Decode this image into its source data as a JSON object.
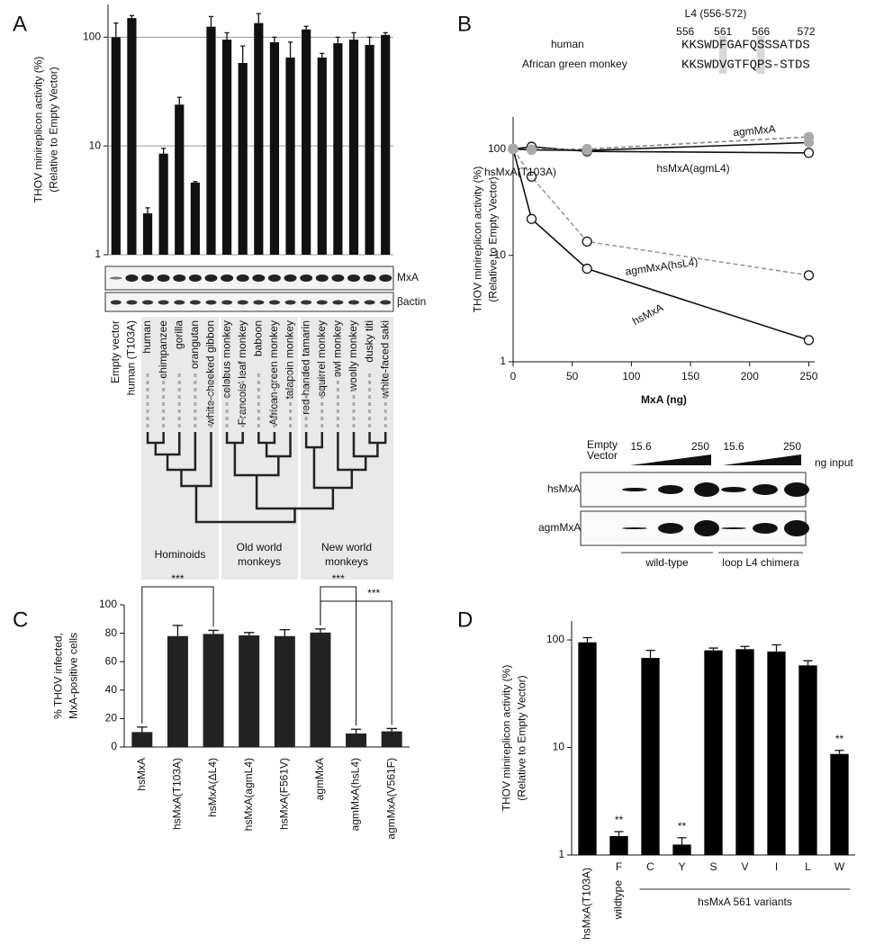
{
  "panel_labels": [
    "A",
    "B",
    "C",
    "D"
  ],
  "chart_data": [
    {
      "type": "bar",
      "ylabel": [
        "THOV minireplicon activity (%)",
        "(Relative to Empty Vector)"
      ],
      "categories": [
        "Empty vector",
        "human (T103A)",
        "human",
        "chimpanzee",
        "gorilla",
        "orangutan",
        "white-cheeked gibbon",
        "colobus monkey",
        "Francois' leaf monkey",
        "baboon",
        "African green monkey",
        "talapoin monkey",
        "red-handed tamarin",
        "squirrel monkey",
        "owl monkey",
        "woolly monkey",
        "dusky titi",
        "white-faced saki"
      ],
      "values": [
        100,
        150,
        2.4,
        8.5,
        24,
        4.6,
        125,
        95,
        58,
        135,
        90,
        65,
        118,
        65,
        88,
        95,
        85,
        105
      ],
      "errors": [
        35,
        8,
        0.3,
        1,
        4,
        0.1,
        30,
        15,
        25,
        30,
        10,
        25,
        8,
        6,
        12,
        15,
        15,
        5
      ],
      "color": "#111111",
      "log": true,
      "grid": true,
      "ylim": [
        1,
        200
      ],
      "yticks": [
        1,
        10,
        100
      ]
    },
    {
      "type": "line",
      "ylabel": [
        "THOV minireplicon activity (%)",
        "(Relative to Empty Vector)"
      ],
      "xlabel": "MxA (ng)",
      "x": [
        0,
        15.6,
        62.5,
        250
      ],
      "xlim": [
        0,
        255
      ],
      "xticks": [
        0,
        50,
        100,
        150,
        200,
        250
      ],
      "log": true,
      "ylim": [
        1,
        200
      ],
      "yticks": [
        1,
        10,
        100
      ],
      "series": [
        {
          "name": "hsMxA",
          "color": "#111111",
          "dash": false,
          "marker_color": "#ffffff",
          "values": [
            100,
            22,
            7.5,
            1.6
          ]
        },
        {
          "name": "agmMxA(hsL4)",
          "color": "#999999",
          "dash": true,
          "marker_color": "#ffffff",
          "values": [
            100,
            55,
            13.5,
            6.5
          ]
        },
        {
          "name": "hsMxA(T103A)",
          "color": "#111111",
          "dash": false,
          "marker_color": "#ffffff",
          "values": [
            100,
            105,
            95,
            92
          ]
        },
        {
          "name": "agmMxA",
          "color": "#888888",
          "dash": true,
          "marker_color": "#aaaaaa",
          "values": [
            100,
            99,
            100,
            130
          ]
        },
        {
          "name": "hsMxA(agmL4)",
          "color": "#111111",
          "dash": false,
          "marker_color": "#aaaaaa",
          "values": [
            100,
            98,
            97,
            115
          ]
        }
      ]
    },
    {
      "type": "bar",
      "ylabel": [
        "% THOV infected,",
        "MxA-positive cells"
      ],
      "categories": [
        "hsMxA",
        "hsMxA(T103A)",
        "hsMxA(ΔL4)",
        "hsMxA(agmL4)",
        "hsMxA(F561V)",
        "agmMxA",
        "agmMxA(hsL4)",
        "agmMxA(V561F)"
      ],
      "values": [
        10.5,
        78,
        79.5,
        78.5,
        78,
        80.5,
        9.5,
        11
      ],
      "errors": [
        3.5,
        7.5,
        2.5,
        2,
        4.5,
        2.5,
        3,
        2
      ],
      "color": "#222222",
      "log": false,
      "grid": false,
      "ylim": [
        0,
        100
      ],
      "yticks": [
        0,
        20,
        40,
        60,
        80,
        100
      ],
      "annotations": [
        "***",
        "***",
        "***"
      ]
    },
    {
      "type": "bar",
      "ylabel": [
        "THOV minireplicon activity (%)",
        "(Relative to Empty Vector)"
      ],
      "categories": [
        "hsMxA(T103A)",
        "F",
        "C",
        "Y",
        "S",
        "V",
        "I",
        "L",
        "W"
      ],
      "values": [
        95,
        1.5,
        68,
        1.25,
        80,
        82,
        78,
        58,
        8.7
      ],
      "errors": [
        10,
        0.15,
        12,
        0.2,
        4,
        5,
        12,
        6,
        0.7
      ],
      "color": "#000000",
      "log": true,
      "grid": false,
      "ylim": [
        1,
        150
      ],
      "yticks": [
        1,
        10,
        100
      ],
      "annotations": [
        "**",
        "**",
        "**"
      ],
      "groups": [
        "wildtype",
        "hsMxA 561 variants"
      ]
    }
  ],
  "blot_a": {
    "bands": [
      "MxA",
      "βactin"
    ]
  },
  "tree": {
    "groups": [
      [
        "Hominoids"
      ],
      [
        "Old world",
        "monkeys"
      ],
      [
        "New world",
        "monkeys"
      ]
    ]
  },
  "alignment": {
    "title": "L4 (556-572)",
    "positions": [
      556,
      561,
      566,
      572
    ],
    "rows": [
      {
        "name": "human",
        "seq": "KKSWDFGAFQSSSATDS"
      },
      {
        "name": "African green monkey",
        "seq": "KKSWDVGTFQPS-STDS"
      }
    ]
  },
  "blot_b": {
    "header": [
      "Empty",
      "Vector"
    ],
    "doses": [
      "15.6",
      "250",
      "15.6",
      "250"
    ],
    "unit": "ng input",
    "rows": [
      "hsMxA",
      "agmMxA"
    ],
    "groups": [
      "wild-type",
      "loop L4 chimera"
    ]
  }
}
